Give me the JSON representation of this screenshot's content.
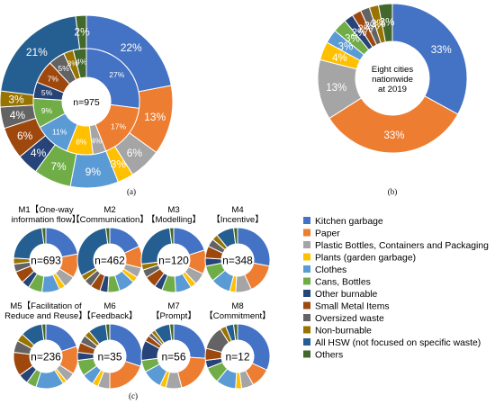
{
  "colors": {
    "Kitchen garbage": "#4472C4",
    "Paper": "#ED7D31",
    "Plastic Bottles, Containers and Packaging": "#A5A5A5",
    "Plants (garden garbage)": "#FFC000",
    "Clothes": "#5B9BD5",
    "Cans, Bottles": "#70AD47",
    "Other burnable": "#264478",
    "Small Metal Items": "#9E480E",
    "Oversized waste": "#636363",
    "Non-burnable": "#997300",
    "All HSW (not focused on specific waste)": "#255E91",
    "Others": "#43682B"
  },
  "chart_data": [
    {
      "id": "a",
      "type": "pie",
      "panel_label": "(a)",
      "center_text": "n=975",
      "categories": [
        "Kitchen garbage",
        "Paper",
        "Plastic Bottles, Containers and Packaging",
        "Plants (garden garbage)",
        "Clothes",
        "Cans, Bottles",
        "Other burnable",
        "Small Metal Items",
        "Oversized waste",
        "Non-burnable",
        "All HSW (not focused on specific waste)",
        "Others"
      ],
      "rings": [
        {
          "name": "outer",
          "values": [
            22,
            13,
            6,
            3,
            9,
            7,
            4,
            6,
            4,
            3,
            21,
            2
          ],
          "labels": [
            "22%",
            "13%",
            "6%",
            "3%",
            "9%",
            "7%",
            "4%",
            "6%",
            "4%",
            "3%",
            "21%",
            "2%"
          ]
        },
        {
          "name": "inner",
          "values": [
            27,
            17,
            4,
            8,
            11,
            9,
            5,
            7,
            5,
            3,
            0,
            4
          ],
          "labels": [
            "27%",
            "17%",
            "4%",
            "8%",
            "11%",
            "9%",
            "5%",
            "7%",
            "5%",
            "3%",
            "",
            "4%"
          ]
        }
      ]
    },
    {
      "id": "b",
      "type": "pie",
      "panel_label": "(b)",
      "center_text": "Eight cities nationwide at 2019",
      "center_lines": [
        "Eight cities",
        "nationwide",
        "at 2019"
      ],
      "categories": [
        "Kitchen garbage",
        "Paper",
        "Plastic Bottles, Containers and Packaging",
        "Plants (garden garbage)",
        "Clothes",
        "Cans, Bottles",
        "Other burnable",
        "Small Metal Items",
        "Oversized waste",
        "Non-burnable",
        "All HSW (not focused on specific waste)",
        "Others"
      ],
      "values": [
        33,
        33,
        13,
        4,
        3,
        3,
        2,
        2,
        2,
        2,
        0,
        3
      ],
      "labels": [
        "33%",
        "33%",
        "13%",
        "4%",
        "3%",
        "3%",
        "2%",
        "2%",
        "2%",
        "2%",
        "",
        "3%"
      ]
    },
    {
      "id": "c",
      "type": "pie",
      "panel_label": "(c)",
      "categories": [
        "Kitchen garbage",
        "Paper",
        "Plastic Bottles, Containers and Packaging",
        "Plants (garden garbage)",
        "Clothes",
        "Cans, Bottles",
        "Other burnable",
        "Small Metal Items",
        "Oversized waste",
        "Non-burnable",
        "All HSW (not focused on specific waste)",
        "Others"
      ],
      "charts": [
        {
          "title": [
            "M1【One-way",
            "information flow】"
          ],
          "n": "n=693",
          "values": [
            22,
            12,
            6,
            3,
            9,
            7,
            4,
            6,
            4,
            3,
            22,
            2
          ]
        },
        {
          "title": [
            "M2",
            "【Communication】"
          ],
          "n": "n=462",
          "values": [
            18,
            11,
            5,
            3,
            8,
            6,
            4,
            5,
            4,
            3,
            31,
            2
          ]
        },
        {
          "title": [
            "M3",
            "【Modelling】"
          ],
          "n": "n=120",
          "values": [
            20,
            12,
            6,
            3,
            8,
            7,
            4,
            6,
            4,
            3,
            25,
            2
          ]
        },
        {
          "title": [
            "M4",
            "【Incentive】"
          ],
          "n": "n=348",
          "values": [
            28,
            15,
            8,
            3,
            10,
            8,
            4,
            6,
            4,
            3,
            9,
            2
          ]
        },
        {
          "title": [
            "M5【Facilitation of",
            "Reduce and Reuse】"
          ],
          "n": "n=236",
          "values": [
            20,
            14,
            5,
            2,
            14,
            5,
            5,
            12,
            6,
            4,
            11,
            2
          ]
        },
        {
          "title": [
            "M6",
            "【Feedback】"
          ],
          "n": "n=35",
          "values": [
            30,
            20,
            6,
            3,
            6,
            8,
            4,
            5,
            4,
            3,
            9,
            2
          ]
        },
        {
          "title": [
            "M7",
            "【Prompt】"
          ],
          "n": "n=56",
          "values": [
            26,
            20,
            8,
            3,
            10,
            6,
            10,
            3,
            2,
            2,
            8,
            2
          ]
        },
        {
          "title": [
            "M8",
            "【Commitment】"
          ],
          "n": "n=12",
          "values": [
            32,
            10,
            6,
            3,
            10,
            8,
            4,
            6,
            12,
            3,
            4,
            2
          ]
        }
      ]
    }
  ],
  "legend": {
    "items": [
      "Kitchen garbage",
      "Paper",
      "Plastic Bottles, Containers and Packaging",
      "Plants (garden garbage)",
      "Clothes",
      "Cans, Bottles",
      "Other burnable",
      "Small Metal Items",
      "Oversized waste",
      "Non-burnable",
      "All HSW (not focused on specific waste)",
      "Others"
    ]
  }
}
